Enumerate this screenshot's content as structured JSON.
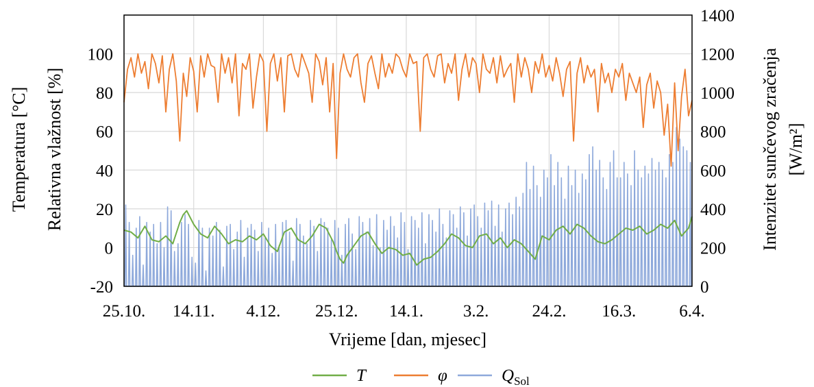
{
  "chart_data": {
    "type": "line",
    "xlabel": "Vrijeme [dan, mjesec]",
    "ylabel_left_lines": [
      "Temperatura [°C]",
      "Relativna vlažnost [%]"
    ],
    "ylabel_right_lines": [
      "Intenzitet sunčevog zračenja",
      "[W/m²]"
    ],
    "x_tick_labels": [
      "25.10.",
      "14.11.",
      "4.12.",
      "25.12.",
      "14.1.",
      "3.2.",
      "24.2.",
      "16.3.",
      "6.4."
    ],
    "x_tick_days": [
      0,
      20,
      40,
      61,
      81,
      101,
      122,
      142,
      163
    ],
    "x_range_days": [
      0,
      163
    ],
    "y_left_ticks": [
      "-20",
      "0",
      "20",
      "40",
      "60",
      "80",
      "100"
    ],
    "y_left_range": [
      -20,
      120
    ],
    "y_right_ticks": [
      "0",
      "200",
      "400",
      "600",
      "800",
      "1000",
      "1200",
      "1400"
    ],
    "y_right_range": [
      0,
      1400
    ],
    "grid": true,
    "legend_position": "bottom-center",
    "series": [
      {
        "name": "T",
        "axis": "left",
        "color": "#70ad47",
        "x": [
          0,
          2,
          4,
          6,
          8,
          10,
          12,
          14,
          16,
          17,
          18,
          20,
          22,
          24,
          26,
          28,
          30,
          32,
          34,
          36,
          38,
          40,
          42,
          44,
          46,
          48,
          50,
          52,
          54,
          56,
          58,
          60,
          61,
          62,
          63,
          64,
          66,
          68,
          70,
          72,
          74,
          76,
          78,
          80,
          82,
          84,
          86,
          88,
          90,
          92,
          94,
          96,
          98,
          100,
          102,
          104,
          106,
          108,
          110,
          112,
          114,
          116,
          118,
          120,
          122,
          124,
          126,
          128,
          130,
          132,
          134,
          136,
          138,
          140,
          142,
          144,
          146,
          148,
          150,
          152,
          154,
          156,
          158,
          160,
          162,
          163
        ],
        "values": [
          9,
          8,
          5,
          11,
          4,
          3,
          6,
          2,
          13,
          17,
          19,
          12,
          7,
          5,
          11,
          7,
          2,
          4,
          3,
          6,
          4,
          7,
          1,
          -2,
          8,
          10,
          4,
          2,
          6,
          12,
          10,
          3,
          -2,
          -6,
          -8,
          -4,
          1,
          6,
          8,
          2,
          -3,
          0,
          -1,
          -4,
          -3,
          -9,
          -6,
          -5,
          -2,
          2,
          7,
          5,
          1,
          0,
          6,
          7,
          2,
          5,
          0,
          4,
          2,
          -2,
          -6,
          6,
          4,
          9,
          11,
          7,
          12,
          10,
          6,
          3,
          2,
          4,
          7,
          10,
          9,
          11,
          7,
          9,
          12,
          10,
          14,
          6,
          10,
          16
        ]
      },
      {
        "name": "φ",
        "axis": "left",
        "color": "#ed7d31",
        "x": [
          0,
          1,
          2,
          3,
          4,
          5,
          6,
          7,
          8,
          9,
          10,
          11,
          12,
          13,
          14,
          15,
          16,
          17,
          18,
          19,
          20,
          21,
          22,
          23,
          24,
          25,
          26,
          27,
          28,
          29,
          30,
          31,
          32,
          33,
          34,
          35,
          36,
          37,
          38,
          39,
          40,
          41,
          42,
          43,
          44,
          45,
          46,
          47,
          48,
          49,
          50,
          51,
          52,
          53,
          54,
          55,
          56,
          57,
          58,
          59,
          60,
          61,
          62,
          63,
          64,
          65,
          66,
          67,
          68,
          69,
          70,
          71,
          72,
          73,
          74,
          75,
          76,
          77,
          78,
          79,
          80,
          81,
          82,
          83,
          84,
          85,
          86,
          87,
          88,
          89,
          90,
          91,
          92,
          93,
          94,
          95,
          96,
          97,
          98,
          99,
          100,
          101,
          102,
          103,
          104,
          105,
          106,
          107,
          108,
          109,
          110,
          111,
          112,
          113,
          114,
          115,
          116,
          117,
          118,
          119,
          120,
          121,
          122,
          123,
          124,
          125,
          126,
          127,
          128,
          129,
          130,
          131,
          132,
          133,
          134,
          135,
          136,
          137,
          138,
          139,
          140,
          141,
          142,
          143,
          144,
          145,
          146,
          147,
          148,
          149,
          150,
          151,
          152,
          153,
          154,
          155,
          156,
          157,
          158,
          159,
          160,
          161,
          162,
          163
        ],
        "values": [
          75,
          92,
          98,
          88,
          100,
          90,
          96,
          82,
          100,
          95,
          85,
          99,
          70,
          92,
          100,
          86,
          55,
          90,
          78,
          98,
          91,
          70,
          99,
          88,
          100,
          94,
          93,
          75,
          100,
          90,
          98,
          85,
          100,
          68,
          95,
          92,
          100,
          72,
          88,
          100,
          96,
          60,
          95,
          100,
          86,
          98,
          70,
          99,
          100,
          92,
          88,
          100,
          95,
          90,
          75,
          100,
          96,
          84,
          98,
          70,
          95,
          46,
          90,
          100,
          92,
          88,
          98,
          100,
          85,
          75,
          95,
          99,
          90,
          82,
          100,
          88,
          95,
          90,
          100,
          98,
          92,
          88,
          100,
          95,
          96,
          60,
          98,
          100,
          92,
          88,
          99,
          100,
          85,
          95,
          90,
          100,
          76,
          92,
          100,
          88,
          98,
          95,
          80,
          100,
          92,
          90,
          98,
          85,
          99,
          88,
          92,
          95,
          75,
          100,
          88,
          98,
          92,
          80,
          96,
          90,
          100,
          88,
          94,
          86,
          98,
          90,
          78,
          92,
          96,
          55,
          90,
          98,
          85,
          94,
          88,
          92,
          70,
          95,
          85,
          90,
          80,
          92,
          88,
          95,
          76,
          90,
          85,
          80,
          88,
          62,
          84,
          90,
          72,
          86,
          80,
          58,
          74,
          42,
          85,
          50,
          78,
          92,
          68,
          76
        ]
      },
      {
        "name": "Q_Sol",
        "axis": "right",
        "color": "#8ea9db",
        "daily_peak_x": [
          0,
          1,
          2,
          3,
          4,
          5,
          6,
          7,
          8,
          9,
          10,
          11,
          12,
          13,
          14,
          15,
          16,
          17,
          18,
          19,
          20,
          21,
          22,
          23,
          24,
          25,
          26,
          27,
          28,
          29,
          30,
          31,
          32,
          33,
          34,
          35,
          36,
          37,
          38,
          39,
          40,
          41,
          42,
          43,
          44,
          45,
          46,
          47,
          48,
          49,
          50,
          51,
          52,
          53,
          54,
          55,
          56,
          57,
          58,
          59,
          60,
          61,
          62,
          63,
          64,
          65,
          66,
          67,
          68,
          69,
          70,
          71,
          72,
          73,
          74,
          75,
          76,
          77,
          78,
          79,
          80,
          81,
          82,
          83,
          84,
          85,
          86,
          87,
          88,
          89,
          90,
          91,
          92,
          93,
          94,
          95,
          96,
          97,
          98,
          99,
          100,
          101,
          102,
          103,
          104,
          105,
          106,
          107,
          108,
          109,
          110,
          111,
          112,
          113,
          114,
          115,
          116,
          117,
          118,
          119,
          120,
          121,
          122,
          123,
          124,
          125,
          126,
          127,
          128,
          129,
          130,
          131,
          132,
          133,
          134,
          135,
          136,
          137,
          138,
          139,
          140,
          141,
          142,
          143,
          144,
          145,
          146,
          147,
          148,
          149,
          150,
          151,
          152,
          153,
          154,
          155,
          156,
          157,
          158,
          159,
          160,
          161,
          162
        ],
        "daily_peak_values": [
          420,
          330,
          160,
          300,
          360,
          110,
          330,
          280,
          320,
          220,
          330,
          200,
          410,
          390,
          180,
          220,
          330,
          370,
          320,
          150,
          120,
          340,
          300,
          80,
          300,
          260,
          330,
          290,
          100,
          310,
          320,
          190,
          280,
          340,
          150,
          300,
          320,
          290,
          180,
          330,
          250,
          300,
          170,
          320,
          210,
          330,
          340,
          280,
          130,
          350,
          320,
          260,
          220,
          340,
          310,
          180,
          350,
          330,
          300,
          240,
          340,
          300,
          160,
          320,
          350,
          270,
          190,
          360,
          330,
          280,
          350,
          210,
          370,
          200,
          340,
          290,
          360,
          310,
          250,
          380,
          330,
          190,
          360,
          340,
          300,
          380,
          220,
          370,
          340,
          280,
          400,
          320,
          250,
          390,
          370,
          300,
          410,
          380,
          260,
          400,
          420,
          360,
          300,
          430,
          390,
          440,
          310,
          420,
          280,
          400,
          430,
          370,
          460,
          410,
          480,
          640,
          500,
          620,
          520,
          460,
          600,
          560,
          680,
          520,
          640,
          560,
          450,
          620,
          520,
          600,
          480,
          580,
          550,
          680,
          720,
          600,
          650,
          560,
          500,
          640,
          700,
          560,
          560,
          640,
          580,
          520,
          700,
          600,
          560,
          620,
          580,
          660,
          600,
          640,
          600,
          560,
          680,
          640,
          820,
          760,
          720,
          700,
          640
        ]
      }
    ]
  }
}
